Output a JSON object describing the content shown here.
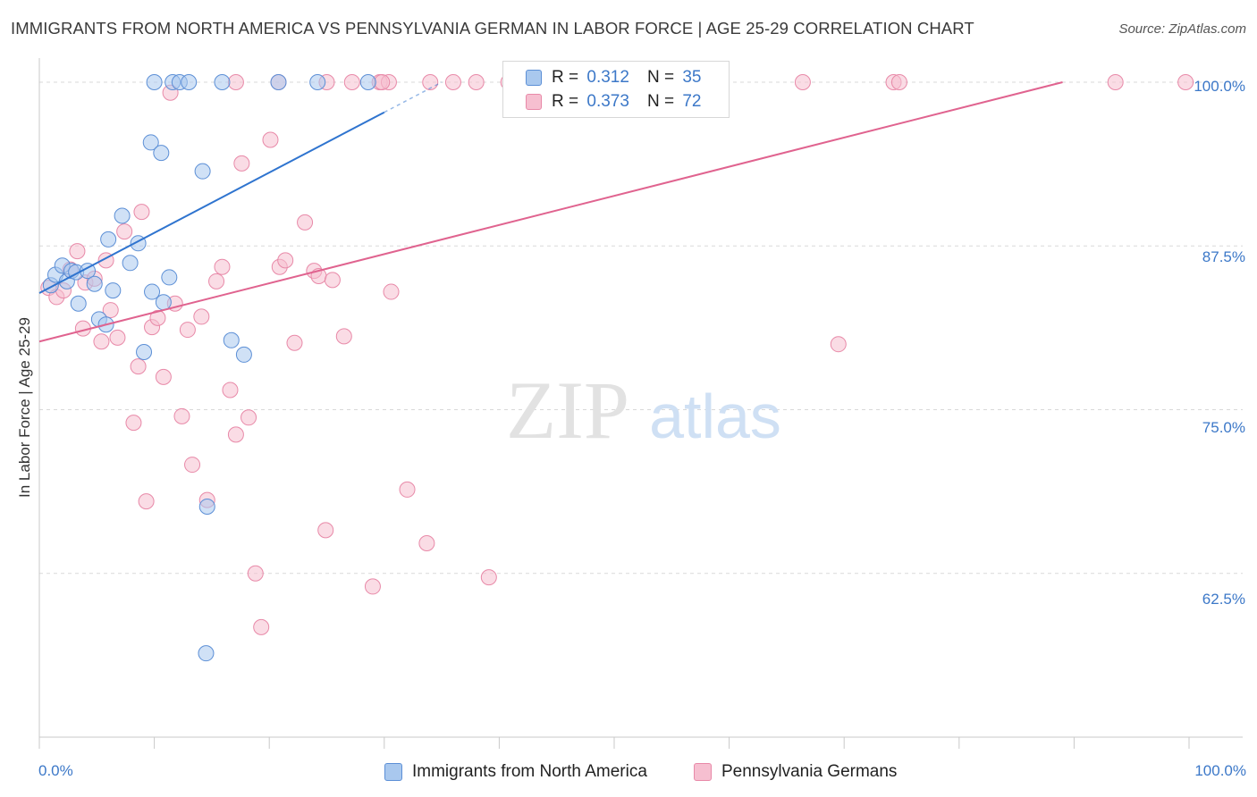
{
  "header": {
    "title": "IMMIGRANTS FROM NORTH AMERICA VS PENNSYLVANIA GERMAN IN LABOR FORCE | AGE 25-29 CORRELATION CHART",
    "source": "Source: ZipAtlas.com"
  },
  "watermark": {
    "zip": "ZIP",
    "atlas": "atlas"
  },
  "stats": {
    "r_label": "R =",
    "n_label": "N =",
    "rows": [
      {
        "r": "0.312",
        "n": "35"
      },
      {
        "r": "0.373",
        "n": "72"
      }
    ]
  },
  "colors": {
    "blue_fill": "#a9c8ee",
    "blue_stroke": "#5c8fd6",
    "blue_line": "#2f74cf",
    "pink_fill": "#f6bfd0",
    "pink_stroke": "#e889a8",
    "pink_line": "#e0638f",
    "tick_label": "#3c78c8",
    "grid": "#d9d9d9"
  },
  "chart_data": {
    "type": "scatter",
    "title": "IMMIGRANTS FROM NORTH AMERICA VS PENNSYLVANIA GERMAN IN LABOR FORCE | AGE 25-29 CORRELATION CHART",
    "xlabel": "",
    "ylabel": "In Labor Force | Age 25-29",
    "xlim": [
      0,
      100
    ],
    "ylim": [
      50.0,
      101.5
    ],
    "x_tick_labels": [
      "0.0%",
      "100.0%"
    ],
    "y_ticks": [
      62.5,
      75.0,
      87.5,
      100.0
    ],
    "y_tick_labels": [
      "62.5%",
      "75.0%",
      "87.5%",
      "100.0%"
    ],
    "grid": true,
    "legend_position": "bottom-center",
    "series": [
      {
        "name": "Immigrants from North America",
        "color": "#a9c8ee",
        "r": 0.312,
        "n": 35,
        "trend": {
          "x": [
            0.0,
            30.0
          ],
          "y": 83.9,
          "y_end": 97.7,
          "dashed_to_x": 35.0,
          "dashed_to_y": 100.0
        },
        "points": [
          [
            1.0,
            84.5
          ],
          [
            1.4,
            85.3
          ],
          [
            2.0,
            86.0
          ],
          [
            2.4,
            84.8
          ],
          [
            2.8,
            85.6
          ],
          [
            3.2,
            85.5
          ],
          [
            3.4,
            83.1
          ],
          [
            4.2,
            85.6
          ],
          [
            4.8,
            84.6
          ],
          [
            5.2,
            81.9
          ],
          [
            6.0,
            88.0
          ],
          [
            6.4,
            84.1
          ],
          [
            5.8,
            81.5
          ],
          [
            7.2,
            89.8
          ],
          [
            7.9,
            86.2
          ],
          [
            8.6,
            87.7
          ],
          [
            9.1,
            79.4
          ],
          [
            9.8,
            84.0
          ],
          [
            10.8,
            83.2
          ],
          [
            11.3,
            85.1
          ],
          [
            9.7,
            95.4
          ],
          [
            10.6,
            94.6
          ],
          [
            14.2,
            93.2
          ],
          [
            14.6,
            67.6
          ],
          [
            16.7,
            80.3
          ],
          [
            17.8,
            79.2
          ],
          [
            14.5,
            56.4
          ],
          [
            10.0,
            100.0
          ],
          [
            11.6,
            100.0
          ],
          [
            12.2,
            100.0
          ],
          [
            13.0,
            100.0
          ],
          [
            15.9,
            100.0
          ],
          [
            20.8,
            100.0
          ],
          [
            24.2,
            100.0
          ],
          [
            28.6,
            100.0
          ]
        ]
      },
      {
        "name": "Pennsylvania Germans",
        "color": "#f6bfd0",
        "r": 0.373,
        "n": 72,
        "trend": {
          "x": [
            0.0,
            89.0
          ],
          "y": 80.2,
          "y_end": 100.0
        },
        "points": [
          [
            0.8,
            84.3
          ],
          [
            1.5,
            83.6
          ],
          [
            2.1,
            84.1
          ],
          [
            2.7,
            85.7
          ],
          [
            3.3,
            87.1
          ],
          [
            3.8,
            81.2
          ],
          [
            4.0,
            84.7
          ],
          [
            4.8,
            85.0
          ],
          [
            5.4,
            80.2
          ],
          [
            5.8,
            86.4
          ],
          [
            6.2,
            82.6
          ],
          [
            6.8,
            80.5
          ],
          [
            7.4,
            88.6
          ],
          [
            8.2,
            74.0
          ],
          [
            8.6,
            78.3
          ],
          [
            8.9,
            90.1
          ],
          [
            9.3,
            68.0
          ],
          [
            9.8,
            81.3
          ],
          [
            10.3,
            82.0
          ],
          [
            10.8,
            77.5
          ],
          [
            11.4,
            99.2
          ],
          [
            11.8,
            83.1
          ],
          [
            12.4,
            74.5
          ],
          [
            12.9,
            81.1
          ],
          [
            13.3,
            70.8
          ],
          [
            14.1,
            82.1
          ],
          [
            14.6,
            68.1
          ],
          [
            15.4,
            84.8
          ],
          [
            15.9,
            85.9
          ],
          [
            16.6,
            76.5
          ],
          [
            17.1,
            73.1
          ],
          [
            17.6,
            93.8
          ],
          [
            18.2,
            74.4
          ],
          [
            18.8,
            62.5
          ],
          [
            19.3,
            58.4
          ],
          [
            20.1,
            95.6
          ],
          [
            20.9,
            85.9
          ],
          [
            21.4,
            86.4
          ],
          [
            22.2,
            80.1
          ],
          [
            23.1,
            89.3
          ],
          [
            23.9,
            85.6
          ],
          [
            24.3,
            85.2
          ],
          [
            24.9,
            65.8
          ],
          [
            25.5,
            84.9
          ],
          [
            26.5,
            80.6
          ],
          [
            29.0,
            61.5
          ],
          [
            29.6,
            100.0
          ],
          [
            30.6,
            84.0
          ],
          [
            32.0,
            68.9
          ],
          [
            33.7,
            64.8
          ],
          [
            39.1,
            62.2
          ],
          [
            40.8,
            100.0
          ],
          [
            43.2,
            100.0
          ],
          [
            48.3,
            100.0
          ],
          [
            50.9,
            100.0
          ],
          [
            66.4,
            100.0
          ],
          [
            69.5,
            80.0
          ],
          [
            74.3,
            100.0
          ],
          [
            74.8,
            100.0
          ],
          [
            17.1,
            100.0
          ],
          [
            20.8,
            100.0
          ],
          [
            25.0,
            100.0
          ],
          [
            27.2,
            100.0
          ],
          [
            30.4,
            100.0
          ],
          [
            34.0,
            100.0
          ],
          [
            36.0,
            100.0
          ],
          [
            38.0,
            100.0
          ],
          [
            41.3,
            100.0
          ],
          [
            44.0,
            100.0
          ],
          [
            93.6,
            100.0
          ],
          [
            99.7,
            100.0
          ],
          [
            29.8,
            100.0
          ]
        ]
      }
    ]
  }
}
